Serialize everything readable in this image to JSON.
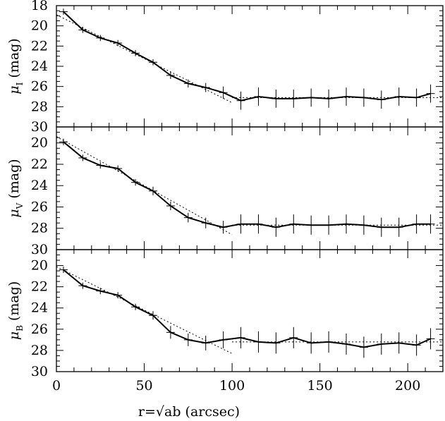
{
  "chart_data": [
    {
      "type": "line",
      "panel": "I",
      "ylabel": "(mag)",
      "ylabel_symbol": "μ",
      "ylabel_subscript": "I",
      "xlim": [
        0,
        220
      ],
      "ylim": [
        30,
        18
      ],
      "y_ticks": [
        "18",
        "20",
        "22",
        "24",
        "26",
        "28",
        "30"
      ],
      "series": [
        {
          "style": "solid-with-errorbars",
          "x": [
            4,
            15,
            25,
            35,
            45,
            55,
            65,
            75,
            85,
            95,
            105,
            115,
            125,
            135,
            145,
            155,
            165,
            175,
            185,
            195,
            205,
            213
          ],
          "y": [
            18.6,
            20.4,
            21.2,
            21.7,
            22.7,
            23.6,
            24.9,
            25.7,
            26.1,
            26.6,
            27.4,
            27.0,
            27.2,
            27.2,
            27.1,
            27.2,
            27.0,
            27.1,
            27.3,
            27.0,
            27.1,
            26.7
          ],
          "err": [
            0.3,
            0.3,
            0.3,
            0.3,
            0.3,
            0.3,
            0.35,
            0.4,
            0.45,
            0.6,
            0.9,
            0.9,
            0.9,
            0.9,
            0.9,
            0.9,
            0.9,
            0.9,
            0.9,
            0.9,
            0.9,
            0.9
          ]
        },
        {
          "style": "dotted",
          "x": [
            0,
            100
          ],
          "y": [
            18.9,
            27.6
          ]
        },
        {
          "style": "dotted",
          "x": [
            100,
            220
          ],
          "y": [
            27.1,
            27.1
          ]
        }
      ]
    },
    {
      "type": "line",
      "panel": "V",
      "ylabel": "(mag)",
      "ylabel_symbol": "μ",
      "ylabel_subscript": "V",
      "xlim": [
        0,
        220
      ],
      "ylim": [
        30,
        18.5
      ],
      "y_ticks": [
        "20",
        "22",
        "24",
        "26",
        "28",
        "30"
      ],
      "series": [
        {
          "style": "solid-with-errorbars",
          "x": [
            4,
            15,
            25,
            35,
            45,
            55,
            65,
            75,
            85,
            95,
            105,
            115,
            125,
            135,
            145,
            155,
            165,
            175,
            185,
            195,
            205,
            213
          ],
          "y": [
            19.9,
            21.4,
            22.1,
            22.4,
            23.7,
            24.5,
            25.9,
            27.0,
            27.5,
            27.9,
            27.6,
            27.6,
            27.9,
            27.6,
            27.7,
            27.7,
            27.6,
            27.7,
            27.9,
            27.9,
            27.6,
            27.6
          ],
          "err": [
            0.3,
            0.3,
            0.3,
            0.3,
            0.3,
            0.4,
            0.4,
            0.45,
            0.5,
            0.6,
            0.9,
            0.9,
            0.9,
            0.9,
            0.9,
            0.9,
            0.9,
            0.9,
            0.9,
            0.9,
            0.9,
            0.9
          ]
        },
        {
          "style": "dotted",
          "x": [
            0,
            100
          ],
          "y": [
            19.4,
            28.6
          ]
        },
        {
          "style": "dotted",
          "x": [
            100,
            220
          ],
          "y": [
            27.7,
            27.7
          ]
        }
      ]
    },
    {
      "type": "line",
      "panel": "B",
      "ylabel": "(mag)",
      "ylabel_symbol": "μ",
      "ylabel_subscript": "B",
      "xlabel": "r=√ab (arcsec)",
      "xlim": [
        0,
        220
      ],
      "ylim": [
        30,
        18.5
      ],
      "x_ticks": [
        "0",
        "50",
        "100",
        "150",
        "200"
      ],
      "y_ticks": [
        "20",
        "22",
        "24",
        "26",
        "28",
        "30"
      ],
      "series": [
        {
          "style": "solid-with-errorbars",
          "x": [
            4,
            15,
            25,
            35,
            45,
            55,
            65,
            75,
            85,
            95,
            105,
            115,
            125,
            135,
            145,
            155,
            165,
            175,
            185,
            195,
            205,
            213
          ],
          "y": [
            20.4,
            21.9,
            22.4,
            22.8,
            23.9,
            24.7,
            26.3,
            27.0,
            27.3,
            27.0,
            26.8,
            27.2,
            27.3,
            26.8,
            27.3,
            27.2,
            27.4,
            27.7,
            27.4,
            27.3,
            27.5,
            26.9
          ],
          "err": [
            0.3,
            0.3,
            0.3,
            0.3,
            0.3,
            0.4,
            0.6,
            0.6,
            0.7,
            0.8,
            1.0,
            1.0,
            1.0,
            1.0,
            1.0,
            1.0,
            1.0,
            1.0,
            1.0,
            1.0,
            1.0,
            1.0
          ]
        },
        {
          "style": "dotted",
          "x": [
            0,
            100
          ],
          "y": [
            20.1,
            28.3
          ]
        },
        {
          "style": "dotted",
          "x": [
            100,
            220
          ],
          "y": [
            27.2,
            27.2
          ]
        }
      ]
    }
  ]
}
